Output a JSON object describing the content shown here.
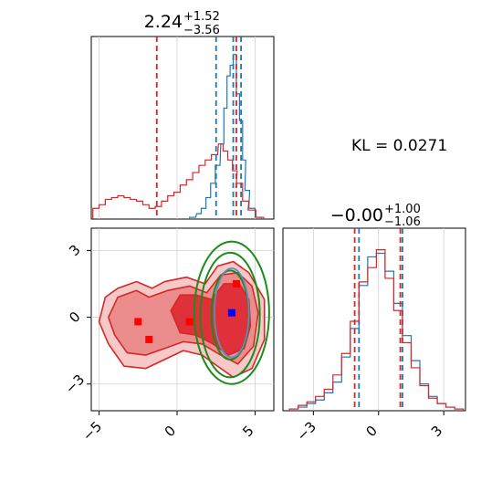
{
  "chart_data": [
    {
      "type": "histogram",
      "panel": "top-left",
      "title": {
        "main": "2.24",
        "plus": "+1.52",
        "minus": "−3.56"
      },
      "xlim": [
        -5.5,
        6.2
      ],
      "grid": true,
      "x_ticks": [
        -5,
        0,
        5
      ],
      "series": [
        {
          "color": "#1f77b4",
          "bins": [
            [
              1.0,
              0.01
            ],
            [
              1.4,
              0.03
            ],
            [
              1.7,
              0.06
            ],
            [
              2.0,
              0.12
            ],
            [
              2.3,
              0.2
            ],
            [
              2.6,
              0.3
            ],
            [
              2.9,
              0.42
            ],
            [
              3.1,
              0.62
            ],
            [
              3.3,
              0.8
            ],
            [
              3.5,
              0.86
            ],
            [
              3.7,
              0.92
            ],
            [
              3.9,
              0.7
            ],
            [
              4.1,
              0.55
            ],
            [
              4.3,
              0.33
            ],
            [
              4.5,
              0.16
            ],
            [
              4.8,
              0.06
            ],
            [
              5.2,
              0.01
            ]
          ],
          "quantiles": [
            2.5,
            3.6,
            4.1
          ]
        },
        {
          "color": "#d62728",
          "bins": [
            [
              -5.2,
              0.06
            ],
            [
              -4.8,
              0.08
            ],
            [
              -4.4,
              0.11
            ],
            [
              -4.0,
              0.12
            ],
            [
              -3.6,
              0.13
            ],
            [
              -3.2,
              0.12
            ],
            [
              -2.8,
              0.11
            ],
            [
              -2.4,
              0.1
            ],
            [
              -2.0,
              0.08
            ],
            [
              -1.6,
              0.06
            ],
            [
              -1.2,
              0.07
            ],
            [
              -0.8,
              0.1
            ],
            [
              -0.4,
              0.13
            ],
            [
              0.0,
              0.15
            ],
            [
              0.4,
              0.19
            ],
            [
              0.8,
              0.22
            ],
            [
              1.2,
              0.26
            ],
            [
              1.6,
              0.3
            ],
            [
              2.0,
              0.33
            ],
            [
              2.4,
              0.36
            ],
            [
              2.8,
              0.42
            ],
            [
              3.1,
              0.38
            ],
            [
              3.4,
              0.33
            ],
            [
              3.7,
              0.27
            ],
            [
              4.0,
              0.2
            ],
            [
              4.4,
              0.1
            ],
            [
              4.8,
              0.05
            ],
            [
              5.3,
              0.01
            ]
          ],
          "quantiles": [
            -1.3,
            3.8
          ]
        }
      ]
    },
    {
      "type": "contour",
      "panel": "bottom-left",
      "xlim": [
        -5.5,
        6.2
      ],
      "ylim": [
        -4.2,
        4.0
      ],
      "grid": true,
      "x_ticks": [
        -5,
        0,
        5
      ],
      "y_ticks": [
        -3,
        0,
        3
      ],
      "blue_point": [
        3.5,
        0.2
      ],
      "red_points": [
        [
          -2.5,
          -0.2
        ],
        [
          -1.8,
          -1.0
        ],
        [
          0.8,
          -0.2
        ],
        [
          3.8,
          1.5
        ]
      ],
      "green_ellipses": [
        {
          "cx": 3.4,
          "cy": 0.1,
          "rx": 1.2,
          "ry": 2.0
        },
        {
          "cx": 3.4,
          "cy": 0.1,
          "rx": 1.9,
          "ry": 2.8
        },
        {
          "cx": 3.5,
          "cy": 0.2,
          "rx": 2.4,
          "ry": 3.2
        }
      ]
    },
    {
      "type": "histogram",
      "panel": "bottom-right",
      "title": {
        "main": "−0.00",
        "plus": "+1.00",
        "minus": "−1.06"
      },
      "xlim": [
        -4.4,
        4.0
      ],
      "grid": true,
      "x_ticks": [
        -3,
        0,
        3
      ],
      "series": [
        {
          "color": "#1f77b4",
          "bins": [
            [
              -3.9,
              0.01
            ],
            [
              -3.5,
              0.02
            ],
            [
              -3.1,
              0.04
            ],
            [
              -2.7,
              0.06
            ],
            [
              -2.3,
              0.1
            ],
            [
              -1.9,
              0.16
            ],
            [
              -1.5,
              0.3
            ],
            [
              -1.1,
              0.46
            ],
            [
              -0.7,
              0.7
            ],
            [
              -0.3,
              0.86
            ],
            [
              0.1,
              0.88
            ],
            [
              0.5,
              0.78
            ],
            [
              0.9,
              0.6
            ],
            [
              1.3,
              0.42
            ],
            [
              1.7,
              0.28
            ],
            [
              2.1,
              0.15
            ],
            [
              2.5,
              0.08
            ],
            [
              2.9,
              0.04
            ],
            [
              3.3,
              0.02
            ],
            [
              3.7,
              0.01
            ]
          ],
          "quantiles": [
            -0.9,
            1.1
          ]
        },
        {
          "color": "#d62728",
          "bins": [
            [
              -3.9,
              0.01
            ],
            [
              -3.5,
              0.03
            ],
            [
              -3.1,
              0.05
            ],
            [
              -2.7,
              0.08
            ],
            [
              -2.3,
              0.12
            ],
            [
              -1.9,
              0.2
            ],
            [
              -1.5,
              0.32
            ],
            [
              -1.1,
              0.5
            ],
            [
              -0.7,
              0.72
            ],
            [
              -0.3,
              0.8
            ],
            [
              0.1,
              0.9
            ],
            [
              0.5,
              0.74
            ],
            [
              0.9,
              0.56
            ],
            [
              1.3,
              0.38
            ],
            [
              1.7,
              0.24
            ],
            [
              2.1,
              0.14
            ],
            [
              2.5,
              0.07
            ],
            [
              2.9,
              0.04
            ],
            [
              3.3,
              0.02
            ],
            [
              3.7,
              0.01
            ]
          ],
          "quantiles": [
            -1.1,
            1.0
          ]
        }
      ]
    }
  ],
  "annotation": {
    "kl": "KL = 0.0271"
  }
}
